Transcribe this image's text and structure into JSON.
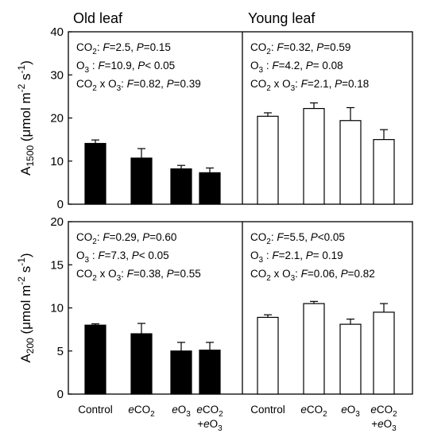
{
  "chart_data": [
    {
      "type": "bar",
      "panel": "top-left",
      "title": "Old leaf",
      "ylabel": "A1500 (μmol m-2 s-1)",
      "ylim": [
        0,
        40
      ],
      "yticks": [
        0,
        10,
        20,
        30,
        40
      ],
      "categories": [
        "Control",
        "eCO2",
        "eO3",
        "eCO2+eO3"
      ],
      "series": [
        {
          "values": [
            14.1,
            10.7,
            8.2,
            7.3
          ],
          "errors": [
            0.8,
            2.2,
            0.8,
            1.1
          ],
          "color": "#000000"
        }
      ],
      "annotations": [
        "CO2: F=2.5, P=0.15",
        "O3 : F=10.9, P< 0.05",
        "CO2 x O3: F=0.82, P=0.39"
      ]
    },
    {
      "type": "bar",
      "panel": "top-right",
      "title": "Young leaf",
      "ylim": [
        0,
        40
      ],
      "categories": [
        "Control",
        "eCO2",
        "eO3",
        "eCO2+eO3"
      ],
      "series": [
        {
          "values": [
            20.4,
            22.2,
            19.4,
            15.0
          ],
          "errors": [
            0.8,
            1.3,
            3.0,
            2.3
          ],
          "color": "#ffffff"
        }
      ],
      "annotations": [
        "CO2: F=0.32, P=0.59",
        "O3 : F=4.2, P= 0.08",
        "CO2 x O3: F=2.1, P=0.18"
      ]
    },
    {
      "type": "bar",
      "panel": "bottom-left",
      "ylabel": "A200 (μmol m-2 s-1)",
      "ylim": [
        0,
        20
      ],
      "yticks": [
        0,
        5,
        10,
        15,
        20
      ],
      "categories": [
        "Control",
        "eCO2",
        "eO3",
        "eCO2+eO3"
      ],
      "series": [
        {
          "values": [
            8.0,
            7.0,
            5.0,
            5.1
          ],
          "errors": [
            0.15,
            1.2,
            1.0,
            0.9
          ],
          "color": "#000000"
        }
      ],
      "annotations": [
        "CO2: F=0.29, P=0.60",
        "O3 : F=7.3, P< 0.05",
        "CO2 x O3: F=0.38, P=0.55"
      ]
    },
    {
      "type": "bar",
      "panel": "bottom-right",
      "ylim": [
        0,
        20
      ],
      "categories": [
        "Control",
        "eCO2",
        "eO3",
        "eCO2+eO3"
      ],
      "series": [
        {
          "values": [
            8.9,
            10.5,
            8.1,
            9.5
          ],
          "errors": [
            0.3,
            0.25,
            0.6,
            1.0
          ],
          "color": "#ffffff"
        }
      ],
      "annotations": [
        "CO2: F=5.5, P<0.05",
        "O3 : F=2.1, P= 0.19",
        "CO2 x O3: F=0.06, P=0.82"
      ]
    }
  ]
}
